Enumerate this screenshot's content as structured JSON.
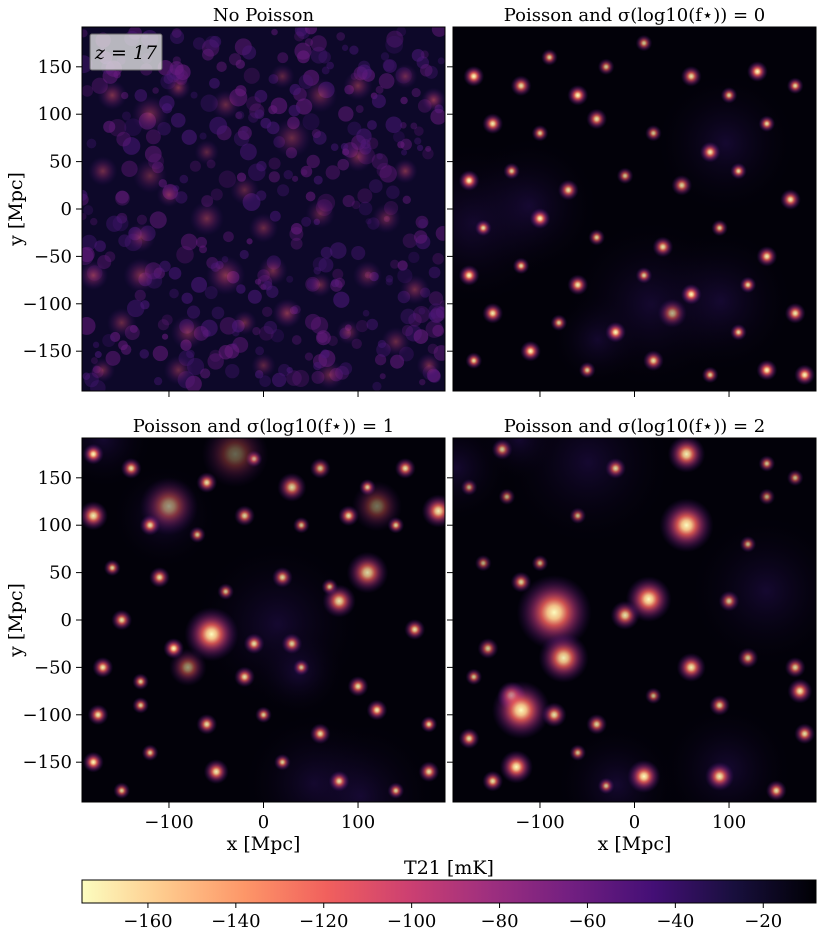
{
  "figure": {
    "redshift_label": "z = 17",
    "colorbar": {
      "label": "T21 [mK]",
      "range": [
        -175,
        -8
      ],
      "ticks": [
        -160,
        -140,
        -120,
        -100,
        -80,
        -60,
        -40,
        -20
      ],
      "colormap": "magma",
      "stops": [
        "#fcfdbf",
        "#feca8d",
        "#fd9668",
        "#f1605d",
        "#cd4071",
        "#9e2f7f",
        "#721f81",
        "#440f76",
        "#180f3d",
        "#000004"
      ]
    }
  },
  "chart_data": [
    {
      "type": "heatmap",
      "panel": "top-left",
      "title": "No Poisson",
      "xlabel": "",
      "ylabel": "y [Mpc]",
      "xlim": [
        -192,
        192
      ],
      "ylim": [
        -192,
        192
      ],
      "xticks": [
        -100,
        0,
        100
      ],
      "yticks": [
        -150,
        -100,
        -50,
        0,
        50,
        100,
        150
      ],
      "show_xticklabels": false,
      "show_yticklabels": true,
      "texture": "diffuse",
      "sources": [
        [
          -160,
          120,
          12,
          0.6
        ],
        [
          -120,
          100,
          15,
          0.55
        ],
        [
          -90,
          128,
          10,
          0.6
        ],
        [
          -40,
          110,
          12,
          0.5
        ],
        [
          20,
          140,
          10,
          0.45
        ],
        [
          60,
          120,
          14,
          0.5
        ],
        [
          100,
          130,
          12,
          0.55
        ],
        [
          150,
          140,
          10,
          0.5
        ],
        [
          180,
          115,
          10,
          0.7
        ],
        [
          -170,
          40,
          12,
          0.55
        ],
        [
          -120,
          35,
          14,
          0.45
        ],
        [
          -60,
          60,
          10,
          0.45
        ],
        [
          30,
          75,
          16,
          0.5
        ],
        [
          100,
          55,
          12,
          0.55
        ],
        [
          150,
          40,
          10,
          0.6
        ],
        [
          -100,
          15,
          10,
          0.5
        ],
        [
          -60,
          -10,
          14,
          0.55
        ],
        [
          0,
          -20,
          12,
          0.5
        ],
        [
          60,
          -5,
          12,
          0.45
        ],
        [
          130,
          -10,
          12,
          0.5
        ],
        [
          -180,
          -70,
          12,
          0.65
        ],
        [
          -130,
          -70,
          14,
          0.6
        ],
        [
          -40,
          -70,
          16,
          0.65
        ],
        [
          10,
          -65,
          12,
          0.55
        ],
        [
          60,
          -80,
          10,
          0.5
        ],
        [
          110,
          -70,
          12,
          0.5
        ],
        [
          160,
          -85,
          12,
          0.55
        ],
        [
          -150,
          -120,
          12,
          0.5
        ],
        [
          -80,
          -130,
          14,
          0.55
        ],
        [
          -20,
          -120,
          10,
          0.5
        ],
        [
          25,
          -110,
          12,
          0.65
        ],
        [
          90,
          -130,
          10,
          0.5
        ],
        [
          140,
          -140,
          12,
          0.5
        ],
        [
          -170,
          -170,
          10,
          0.5
        ],
        [
          -90,
          -170,
          12,
          0.5
        ],
        [
          0,
          -165,
          10,
          0.45
        ],
        [
          70,
          -175,
          12,
          0.5
        ],
        [
          175,
          -165,
          10,
          0.55
        ],
        [
          -20,
          20,
          12,
          0.45
        ],
        [
          -130,
          -30,
          12,
          0.5
        ]
      ]
    },
    {
      "type": "heatmap",
      "panel": "top-right",
      "title": "Poisson and σ(log10(f⋆)) = 0",
      "xlabel": "",
      "ylabel": "",
      "xlim": [
        -192,
        192
      ],
      "ylim": [
        -192,
        192
      ],
      "xticks": [
        -100,
        0,
        100
      ],
      "yticks": [
        -150,
        -100,
        -50,
        0,
        50,
        100,
        150
      ],
      "show_xticklabels": false,
      "show_yticklabels": false,
      "texture": "points",
      "sources": [
        [
          -170,
          140,
          5,
          1.0
        ],
        [
          -120,
          130,
          5,
          0.9
        ],
        [
          -90,
          160,
          4,
          0.85
        ],
        [
          -60,
          120,
          5,
          1.0
        ],
        [
          -30,
          150,
          4,
          0.8
        ],
        [
          10,
          175,
          4,
          0.8
        ],
        [
          60,
          140,
          5,
          0.9
        ],
        [
          100,
          120,
          4,
          0.85
        ],
        [
          130,
          145,
          5,
          1.0
        ],
        [
          170,
          130,
          4,
          0.9
        ],
        [
          -150,
          90,
          5,
          0.95
        ],
        [
          -100,
          80,
          4,
          0.85
        ],
        [
          -40,
          95,
          5,
          0.9
        ],
        [
          20,
          80,
          4,
          0.8
        ],
        [
          80,
          60,
          5,
          0.95
        ],
        [
          140,
          90,
          4,
          0.9
        ],
        [
          -175,
          30,
          5,
          1.0
        ],
        [
          -130,
          40,
          4,
          0.85
        ],
        [
          -70,
          20,
          5,
          0.9
        ],
        [
          -10,
          35,
          4,
          0.8
        ],
        [
          50,
          25,
          5,
          0.85
        ],
        [
          110,
          40,
          4,
          0.9
        ],
        [
          165,
          10,
          5,
          0.95
        ],
        [
          -160,
          -20,
          4,
          0.9
        ],
        [
          -100,
          -10,
          5,
          1.0
        ],
        [
          -40,
          -30,
          4,
          0.85
        ],
        [
          30,
          -40,
          5,
          0.9
        ],
        [
          90,
          -20,
          4,
          0.85
        ],
        [
          140,
          -50,
          5,
          0.95
        ],
        [
          -175,
          -70,
          5,
          1.0
        ],
        [
          -120,
          -60,
          4,
          0.9
        ],
        [
          -60,
          -80,
          5,
          0.95
        ],
        [
          10,
          -70,
          4,
          0.85
        ],
        [
          60,
          -90,
          5,
          1.0
        ],
        [
          120,
          -80,
          4,
          0.9
        ],
        [
          -150,
          -110,
          5,
          0.95
        ],
        [
          -80,
          -120,
          4,
          0.85
        ],
        [
          -20,
          -130,
          5,
          1.0
        ],
        [
          40,
          -110,
          7,
          0.7
        ],
        [
          110,
          -130,
          4,
          0.9
        ],
        [
          170,
          -110,
          5,
          0.95
        ],
        [
          -170,
          -160,
          4,
          0.9
        ],
        [
          -110,
          -150,
          5,
          1.0
        ],
        [
          -50,
          -170,
          4,
          0.85
        ],
        [
          20,
          -160,
          5,
          0.9
        ],
        [
          80,
          -175,
          4,
          0.85
        ],
        [
          140,
          -170,
          5,
          1.0
        ],
        [
          180,
          -175,
          5,
          1.0
        ]
      ]
    },
    {
      "type": "heatmap",
      "panel": "bottom-left",
      "title": "Poisson and σ(log10(f⋆)) = 1",
      "xlabel": "x [Mpc]",
      "ylabel": "y [Mpc]",
      "xlim": [
        -192,
        192
      ],
      "ylim": [
        -192,
        192
      ],
      "xticks": [
        -100,
        0,
        100
      ],
      "yticks": [
        -150,
        -100,
        -50,
        0,
        50,
        100,
        150
      ],
      "show_xticklabels": true,
      "show_yticklabels": true,
      "texture": "points",
      "sources": [
        [
          -180,
          175,
          5,
          1.0
        ],
        [
          -140,
          160,
          5,
          0.9
        ],
        [
          -100,
          120,
          14,
          0.6
        ],
        [
          -60,
          145,
          5,
          0.9
        ],
        [
          -10,
          170,
          4,
          0.85
        ],
        [
          30,
          140,
          7,
          0.85
        ],
        [
          60,
          160,
          5,
          0.8
        ],
        [
          110,
          140,
          4,
          0.9
        ],
        [
          150,
          160,
          5,
          0.9
        ],
        [
          185,
          115,
          8,
          0.95
        ],
        [
          -180,
          110,
          7,
          0.95
        ],
        [
          -120,
          100,
          5,
          0.9
        ],
        [
          -70,
          90,
          4,
          0.8
        ],
        [
          -20,
          110,
          5,
          0.85
        ],
        [
          40,
          100,
          4,
          0.8
        ],
        [
          90,
          110,
          5,
          0.9
        ],
        [
          140,
          100,
          4,
          0.85
        ],
        [
          -160,
          55,
          4,
          0.85
        ],
        [
          -110,
          45,
          5,
          0.9
        ],
        [
          -40,
          30,
          4,
          0.8
        ],
        [
          20,
          45,
          5,
          0.85
        ],
        [
          70,
          35,
          4,
          0.8
        ],
        [
          110,
          50,
          10,
          0.85
        ],
        [
          -150,
          0,
          5,
          0.9
        ],
        [
          -95,
          -30,
          5,
          1.0
        ],
        [
          -55,
          -15,
          13,
          1.0
        ],
        [
          -10,
          -25,
          5,
          0.9
        ],
        [
          30,
          -25,
          5,
          0.85
        ],
        [
          80,
          20,
          8,
          0.9
        ],
        [
          160,
          -10,
          5,
          0.9
        ],
        [
          -170,
          -50,
          5,
          0.95
        ],
        [
          -130,
          -65,
          4,
          0.85
        ],
        [
          -80,
          -50,
          9,
          0.6
        ],
        [
          -20,
          -60,
          5,
          0.9
        ],
        [
          40,
          -50,
          4,
          0.8
        ],
        [
          100,
          -70,
          5,
          0.9
        ],
        [
          -175,
          -100,
          5,
          0.95
        ],
        [
          -130,
          -90,
          4,
          0.85
        ],
        [
          -60,
          -110,
          5,
          0.9
        ],
        [
          0,
          -100,
          4,
          0.85
        ],
        [
          60,
          -120,
          5,
          0.9
        ],
        [
          120,
          -95,
          5,
          0.95
        ],
        [
          175,
          -110,
          4,
          0.9
        ],
        [
          -180,
          -150,
          5,
          1.0
        ],
        [
          -120,
          -140,
          4,
          0.85
        ],
        [
          -50,
          -160,
          6,
          0.95
        ],
        [
          20,
          -150,
          4,
          0.85
        ],
        [
          80,
          -170,
          5,
          0.9
        ],
        [
          140,
          -180,
          4,
          0.85
        ],
        [
          175,
          -160,
          5,
          0.9
        ],
        [
          -150,
          -180,
          4,
          0.85
        ],
        [
          -30,
          175,
          16,
          0.4
        ],
        [
          120,
          120,
          12,
          0.45
        ]
      ]
    },
    {
      "type": "heatmap",
      "panel": "bottom-right",
      "title": "Poisson and σ(log10(f⋆)) = 2",
      "xlabel": "x [Mpc]",
      "ylabel": "",
      "xlim": [
        -192,
        192
      ],
      "ylim": [
        -192,
        192
      ],
      "xticks": [
        -100,
        0,
        100
      ],
      "yticks": [
        -150,
        -100,
        -50,
        0,
        50,
        100,
        150
      ],
      "show_xticklabels": true,
      "show_yticklabels": false,
      "texture": "points",
      "sources": [
        [
          -140,
          180,
          5,
          0.8
        ],
        [
          -20,
          160,
          5,
          0.85
        ],
        [
          55,
          175,
          9,
          0.95
        ],
        [
          140,
          165,
          4,
          0.8
        ],
        [
          170,
          150,
          4,
          0.75
        ],
        [
          55,
          100,
          13,
          1.0
        ],
        [
          -135,
          130,
          4,
          0.7
        ],
        [
          -60,
          110,
          4,
          0.75
        ],
        [
          120,
          80,
          4,
          0.75
        ],
        [
          -160,
          60,
          4,
          0.7
        ],
        [
          -120,
          40,
          5,
          0.85
        ],
        [
          -85,
          8,
          18,
          1.0
        ],
        [
          -10,
          5,
          7,
          0.9
        ],
        [
          15,
          22,
          11,
          1.0
        ],
        [
          -75,
          -40,
          12,
          0.95
        ],
        [
          -155,
          -30,
          5,
          0.8
        ],
        [
          -170,
          -60,
          4,
          0.8
        ],
        [
          60,
          -50,
          7,
          0.95
        ],
        [
          120,
          -40,
          5,
          0.8
        ],
        [
          170,
          -50,
          5,
          0.85
        ],
        [
          -130,
          -80,
          7,
          0.95
        ],
        [
          -120,
          -95,
          14,
          1.0
        ],
        [
          -85,
          -100,
          6,
          0.9
        ],
        [
          -40,
          -110,
          5,
          0.85
        ],
        [
          20,
          -80,
          4,
          0.75
        ],
        [
          90,
          -90,
          5,
          0.85
        ],
        [
          175,
          -75,
          6,
          0.95
        ],
        [
          -175,
          -125,
          5,
          0.9
        ],
        [
          -125,
          -155,
          8,
          1.0
        ],
        [
          -60,
          -140,
          4,
          0.8
        ],
        [
          10,
          -165,
          8,
          1.0
        ],
        [
          90,
          -165,
          7,
          0.95
        ],
        [
          150,
          -180,
          5,
          0.9
        ],
        [
          -30,
          -175,
          4,
          0.8
        ],
        [
          -100,
          60,
          4,
          0.75
        ],
        [
          100,
          20,
          5,
          0.8
        ],
        [
          140,
          130,
          4,
          0.7
        ],
        [
          -175,
          140,
          4,
          0.7
        ],
        [
          -150,
          -170,
          5,
          0.9
        ],
        [
          180,
          -120,
          5,
          0.9
        ]
      ]
    }
  ]
}
